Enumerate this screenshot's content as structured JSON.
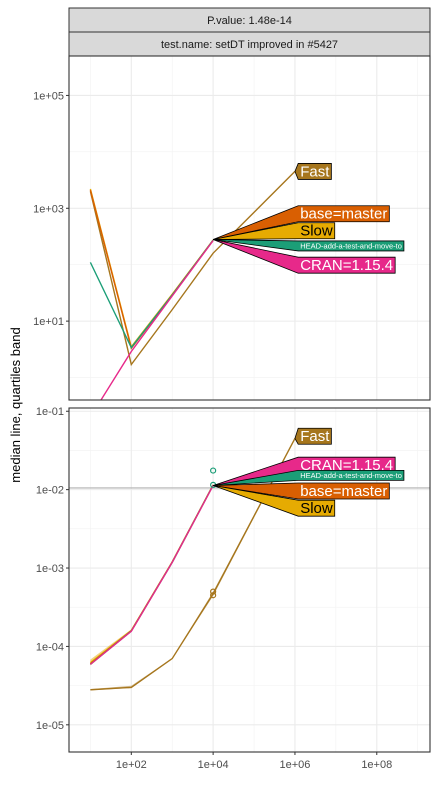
{
  "chart_data": {
    "type": "line",
    "facet_strips": [
      "P.value: 1.48e-14",
      "test.name: setDT improved in #5427"
    ],
    "ylabel": "median line, quartiles band",
    "xlabel": "",
    "x_scale": "log10",
    "y_scale": "log10",
    "xlim": [
      3.0,
      2000000000.0
    ],
    "x_ticks": [
      100,
      10000,
      1000000,
      100000000
    ],
    "x_tick_labels": [
      "1e+02",
      "1e+04",
      "1e+06",
      "1e+08"
    ],
    "grid": true,
    "colors": {
      "Fast": "#A6761D",
      "base=master": "#D95F02",
      "Slow": "#E6AB02",
      "HEAD-add-a-test-and-move-to": "#1B9E77",
      "CRAN=1.15.4": "#E7298A"
    },
    "label_text_colors": {
      "Fast": "#ffffff",
      "base=master": "#ffffff",
      "Slow": "#000000",
      "HEAD-add-a-test-and-move-to": "#ffffff",
      "CRAN=1.15.4": "#ffffff"
    },
    "panels": [
      {
        "ylim": [
          0.4,
          500000
        ],
        "y_ticks": [
          10,
          1000,
          100000
        ],
        "y_tick_labels": [
          "1e+01",
          "1e+03",
          "1e+05"
        ],
        "series": [
          {
            "name": "Fast",
            "x": [
              10,
              100,
              1000,
              10000,
              1000000
            ],
            "y": [
              2000,
              1.7,
              16,
              160,
              4500
            ]
          },
          {
            "name": "Slow",
            "x": [
              10,
              100,
              1000,
              10000
            ],
            "y": [
              2200,
              3.5,
              30,
              275
            ]
          },
          {
            "name": "base=master",
            "x": [
              10,
              100,
              1000,
              10000
            ],
            "y": [
              2100,
              3.3,
              29,
              270
            ]
          },
          {
            "name": "HEAD-add-a-test-and-move-to",
            "x": [
              10,
              100,
              1000,
              10000
            ],
            "y": [
              110,
              3.4,
              29,
              272
            ]
          },
          {
            "name": "CRAN=1.15.4",
            "x": [
              10,
              100,
              1000,
              10000
            ],
            "y": [
              0.2,
              2.9,
              28,
              268
            ]
          }
        ],
        "labels": [
          {
            "name": "Fast",
            "x": 1200000,
            "y": 4500,
            "anchor_x": 1000000,
            "anchor_y": 4500,
            "size": "big"
          },
          {
            "name": "base=master",
            "x": 1200000,
            "y": 800,
            "anchor_x": 10000,
            "anchor_y": 280,
            "size": "big"
          },
          {
            "name": "Slow",
            "x": 1200000,
            "y": 400,
            "anchor_x": 10000,
            "anchor_y": 280,
            "size": "big"
          },
          {
            "name": "HEAD-add-a-test-and-move-to",
            "x": 1200000,
            "y": 215,
            "anchor_x": 10000,
            "anchor_y": 280,
            "size": "small"
          },
          {
            "name": "CRAN=1.15.4",
            "x": 1200000,
            "y": 98,
            "anchor_x": 10000,
            "anchor_y": 280,
            "size": "big"
          }
        ]
      },
      {
        "ylim": [
          4.5e-06,
          0.11
        ],
        "y_ticks": [
          1e-05,
          0.0001,
          0.001,
          0.01,
          0.1
        ],
        "y_tick_labels": [
          "1e-05",
          "1e-04",
          "1e-03",
          "1e-02",
          "1e-01"
        ],
        "hline": 0.0105,
        "series": [
          {
            "name": "Fast",
            "x": [
              10,
              100,
              1000,
              10000,
              1000000
            ],
            "y": [
              2.8e-05,
              3e-05,
              7e-05,
              0.00047,
              0.045
            ],
            "band_low": [
              2.75e-05,
              2.95e-05,
              6.9e-05,
              0.00044,
              0.044
            ],
            "band_high": [
              2.85e-05,
              3.15e-05,
              7.1e-05,
              0.0005,
              0.046
            ]
          },
          {
            "name": "Slow",
            "x": [
              10,
              100,
              1000,
              10000
            ],
            "y": [
              6.2e-05,
              0.00016,
              0.0012,
              0.0115
            ],
            "band_low": [
              5.7e-05,
              0.000155,
              0.00118,
              0.0113
            ],
            "band_high": [
              6.8e-05,
              0.000165,
              0.00122,
              0.0118
            ]
          },
          {
            "name": "base=master",
            "x": [
              10,
              100,
              1000,
              10000
            ],
            "y": [
              6e-05,
              0.000158,
              0.00119,
              0.0114
            ]
          },
          {
            "name": "HEAD-add-a-test-and-move-to",
            "x": [
              10,
              100,
              1000,
              10000
            ],
            "y": [
              5.9e-05,
              0.000157,
              0.00118,
              0.0114
            ]
          },
          {
            "name": "CRAN=1.15.4",
            "x": [
              10,
              100,
              1000,
              10000
            ],
            "y": [
              5.9e-05,
              0.000156,
              0.00118,
              0.0113
            ]
          }
        ],
        "points": [
          {
            "name": "HEAD-add-a-test-and-move-to",
            "x": 10000,
            "y": 0.0115
          },
          {
            "name": "HEAD-add-a-test-and-move-to",
            "x": 10000,
            "y": 0.0175
          },
          {
            "name": "Fast",
            "x": 10000,
            "y": 0.00045
          },
          {
            "name": "Fast",
            "x": 10000,
            "y": 0.0005
          }
        ],
        "labels": [
          {
            "name": "Fast",
            "x": 1200000,
            "y": 0.048,
            "anchor_x": 1000000,
            "anchor_y": 0.045,
            "size": "big"
          },
          {
            "name": "CRAN=1.15.4",
            "x": 1200000,
            "y": 0.0205,
            "anchor_x": 10000,
            "anchor_y": 0.0113,
            "size": "big"
          },
          {
            "name": "HEAD-add-a-test-and-move-to",
            "x": 1200000,
            "y": 0.0152,
            "anchor_x": 10000,
            "anchor_y": 0.0113,
            "size": "small"
          },
          {
            "name": "base=master",
            "x": 1200000,
            "y": 0.0096,
            "anchor_x": 10000,
            "anchor_y": 0.0113,
            "size": "big"
          },
          {
            "name": "Slow",
            "x": 1200000,
            "y": 0.0058,
            "anchor_x": 10000,
            "anchor_y": 0.0113,
            "size": "big"
          }
        ]
      }
    ]
  }
}
